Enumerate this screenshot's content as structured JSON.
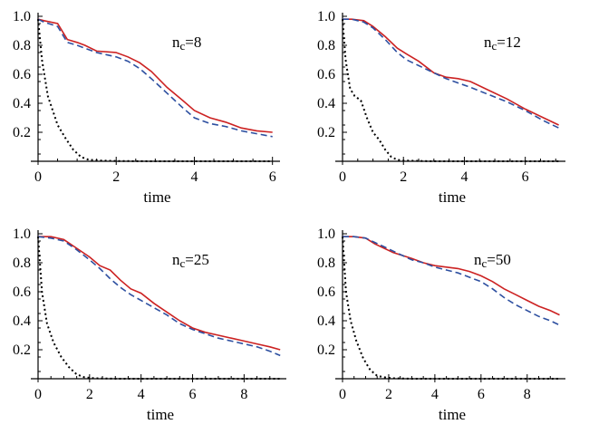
{
  "chart_data": [
    {
      "type": "line",
      "annotation": "n",
      "annotation_sub": "c",
      "annotation_value": "=8",
      "xlabel": "time",
      "ylabel": "",
      "xlim": [
        0,
        6.1
      ],
      "ylim": [
        0,
        1.0
      ],
      "xticks": [
        "0",
        "2",
        "4",
        "6"
      ],
      "yticks": [
        "1.0",
        "0.8",
        "0.6",
        "0.4",
        "0.2"
      ],
      "series": [
        {
          "color": "#cc2222",
          "dash": "solid",
          "x": [
            0,
            0.15,
            0.5,
            0.75,
            1.0,
            1.2,
            1.5,
            2.0,
            2.3,
            2.6,
            2.9,
            3.3,
            3.7,
            4.0,
            4.4,
            4.8,
            5.2,
            5.6,
            6.0
          ],
          "y": [
            0.98,
            0.97,
            0.95,
            0.84,
            0.82,
            0.8,
            0.76,
            0.75,
            0.72,
            0.68,
            0.62,
            0.51,
            0.42,
            0.35,
            0.3,
            0.27,
            0.23,
            0.21,
            0.2
          ]
        },
        {
          "color": "#2d4fa0",
          "dash": "dashed",
          "x": [
            0,
            0.15,
            0.5,
            0.75,
            1.0,
            1.2,
            1.5,
            2.0,
            2.3,
            2.6,
            2.9,
            3.3,
            3.7,
            4.0,
            4.4,
            4.8,
            5.2,
            5.6,
            6.0
          ],
          "y": [
            0.98,
            0.96,
            0.93,
            0.82,
            0.8,
            0.78,
            0.75,
            0.72,
            0.69,
            0.64,
            0.57,
            0.47,
            0.37,
            0.3,
            0.26,
            0.24,
            0.21,
            0.19,
            0.17
          ]
        },
        {
          "color": "#000000",
          "dash": "dotted",
          "x": [
            0,
            0.1,
            0.25,
            0.5,
            0.7,
            0.9,
            1.1,
            1.3,
            1.6,
            2.0,
            3.0,
            4.0,
            5.0,
            6.0
          ],
          "y": [
            0.98,
            0.7,
            0.45,
            0.25,
            0.16,
            0.08,
            0.03,
            0.01,
            0.005,
            0.002,
            0,
            0,
            0,
            0
          ]
        }
      ]
    },
    {
      "type": "line",
      "annotation": "n",
      "annotation_sub": "c",
      "annotation_value": "=12",
      "xlabel": "time",
      "ylabel": "",
      "xlim": [
        0,
        7.2
      ],
      "ylim": [
        0,
        1.0
      ],
      "xticks": [
        "0",
        "2",
        "4",
        "6"
      ],
      "yticks": [
        "1.0",
        "0.8",
        "0.6",
        "0.4",
        "0.2"
      ],
      "series": [
        {
          "color": "#cc2222",
          "dash": "solid",
          "x": [
            0,
            0.3,
            0.7,
            1.0,
            1.4,
            1.8,
            2.1,
            2.5,
            3.0,
            3.4,
            3.8,
            4.2,
            4.8,
            5.4,
            6.0,
            6.6,
            7.1
          ],
          "y": [
            0.98,
            0.98,
            0.97,
            0.93,
            0.86,
            0.78,
            0.74,
            0.69,
            0.61,
            0.58,
            0.57,
            0.55,
            0.49,
            0.43,
            0.36,
            0.3,
            0.25
          ]
        },
        {
          "color": "#2d4fa0",
          "dash": "dashed",
          "x": [
            0,
            0.3,
            0.7,
            1.0,
            1.4,
            1.8,
            2.1,
            2.5,
            3.0,
            3.4,
            3.8,
            4.2,
            4.8,
            5.4,
            6.0,
            6.6,
            7.1
          ],
          "y": [
            0.98,
            0.98,
            0.96,
            0.92,
            0.84,
            0.75,
            0.7,
            0.66,
            0.61,
            0.57,
            0.54,
            0.51,
            0.46,
            0.41,
            0.35,
            0.28,
            0.23
          ]
        },
        {
          "color": "#000000",
          "dash": "dotted",
          "x": [
            0,
            0.1,
            0.25,
            0.4,
            0.6,
            0.8,
            1.0,
            1.2,
            1.4,
            1.6,
            1.8,
            2.0,
            3.0,
            4.0,
            5.0,
            6.0,
            7.1
          ],
          "y": [
            0.98,
            0.7,
            0.5,
            0.45,
            0.42,
            0.3,
            0.2,
            0.15,
            0.08,
            0.03,
            0.01,
            0.005,
            0,
            0,
            0,
            0,
            0
          ]
        }
      ]
    },
    {
      "type": "line",
      "annotation": "n",
      "annotation_sub": "c",
      "annotation_value": "=25",
      "xlabel": "time",
      "ylabel": "",
      "xlim": [
        0,
        9.5
      ],
      "ylim": [
        0,
        1.0
      ],
      "xticks": [
        "0",
        "2",
        "4",
        "6",
        "8"
      ],
      "yticks": [
        "1.0",
        "0.8",
        "0.6",
        "0.4",
        "0.2"
      ],
      "series": [
        {
          "color": "#cc2222",
          "dash": "solid",
          "x": [
            0,
            0.5,
            1.0,
            1.5,
            2.0,
            2.4,
            2.8,
            3.2,
            3.6,
            4.0,
            4.5,
            5.0,
            5.5,
            6.0,
            6.5,
            7.0,
            7.5,
            8.0,
            8.5,
            9.0,
            9.4
          ],
          "y": [
            0.98,
            0.98,
            0.96,
            0.9,
            0.84,
            0.78,
            0.75,
            0.68,
            0.62,
            0.59,
            0.52,
            0.46,
            0.4,
            0.35,
            0.32,
            0.3,
            0.28,
            0.26,
            0.24,
            0.22,
            0.2
          ]
        },
        {
          "color": "#2d4fa0",
          "dash": "dashed",
          "x": [
            0,
            0.5,
            1.0,
            1.5,
            2.0,
            2.4,
            2.8,
            3.2,
            3.6,
            4.0,
            4.5,
            5.0,
            5.5,
            6.0,
            6.5,
            7.0,
            7.5,
            8.0,
            8.5,
            9.0,
            9.4
          ],
          "y": [
            0.98,
            0.97,
            0.95,
            0.89,
            0.82,
            0.76,
            0.69,
            0.63,
            0.58,
            0.54,
            0.49,
            0.44,
            0.38,
            0.34,
            0.31,
            0.28,
            0.26,
            0.24,
            0.22,
            0.19,
            0.16
          ]
        },
        {
          "color": "#000000",
          "dash": "dotted",
          "x": [
            0,
            0.15,
            0.35,
            0.6,
            0.9,
            1.2,
            1.5,
            1.8,
            2.2,
            3.0,
            4.0,
            6.0,
            8.0,
            9.4
          ],
          "y": [
            0.98,
            0.6,
            0.38,
            0.25,
            0.15,
            0.08,
            0.03,
            0.01,
            0.003,
            0,
            0,
            0,
            0,
            0
          ]
        }
      ]
    },
    {
      "type": "line",
      "annotation": "n",
      "annotation_sub": "c",
      "annotation_value": "=50",
      "xlabel": "time",
      "ylabel": "",
      "xlim": [
        0,
        9.5
      ],
      "ylim": [
        0,
        1.0
      ],
      "xticks": [
        "0",
        "2",
        "4",
        "6",
        "8"
      ],
      "yticks": [
        "1.0",
        "0.8",
        "0.6",
        "0.4",
        "0.2"
      ],
      "series": [
        {
          "color": "#cc2222",
          "dash": "solid",
          "x": [
            0,
            0.5,
            1.0,
            1.4,
            1.8,
            2.2,
            2.6,
            3.0,
            3.5,
            4.0,
            4.5,
            5.0,
            5.5,
            6.0,
            6.5,
            7.0,
            7.5,
            8.0,
            8.5,
            9.0,
            9.4
          ],
          "y": [
            0.98,
            0.98,
            0.97,
            0.93,
            0.9,
            0.87,
            0.85,
            0.83,
            0.8,
            0.78,
            0.77,
            0.76,
            0.74,
            0.71,
            0.67,
            0.62,
            0.58,
            0.54,
            0.5,
            0.47,
            0.44
          ]
        },
        {
          "color": "#2d4fa0",
          "dash": "dashed",
          "x": [
            0,
            0.5,
            1.0,
            1.4,
            1.8,
            2.2,
            2.6,
            3.0,
            3.5,
            4.0,
            4.5,
            5.0,
            5.5,
            6.0,
            6.5,
            7.0,
            7.5,
            8.0,
            8.5,
            9.0,
            9.4
          ],
          "y": [
            0.98,
            0.98,
            0.97,
            0.94,
            0.91,
            0.88,
            0.85,
            0.82,
            0.8,
            0.77,
            0.75,
            0.73,
            0.7,
            0.67,
            0.62,
            0.56,
            0.51,
            0.47,
            0.43,
            0.4,
            0.37
          ]
        },
        {
          "color": "#000000",
          "dash": "dotted",
          "x": [
            0,
            0.15,
            0.35,
            0.6,
            0.9,
            1.2,
            1.5,
            1.8,
            2.2,
            3.0,
            4.0,
            6.0,
            8.0,
            9.4
          ],
          "y": [
            0.98,
            0.6,
            0.4,
            0.26,
            0.14,
            0.06,
            0.02,
            0.01,
            0.003,
            0,
            0,
            0,
            0,
            0
          ]
        }
      ]
    }
  ]
}
